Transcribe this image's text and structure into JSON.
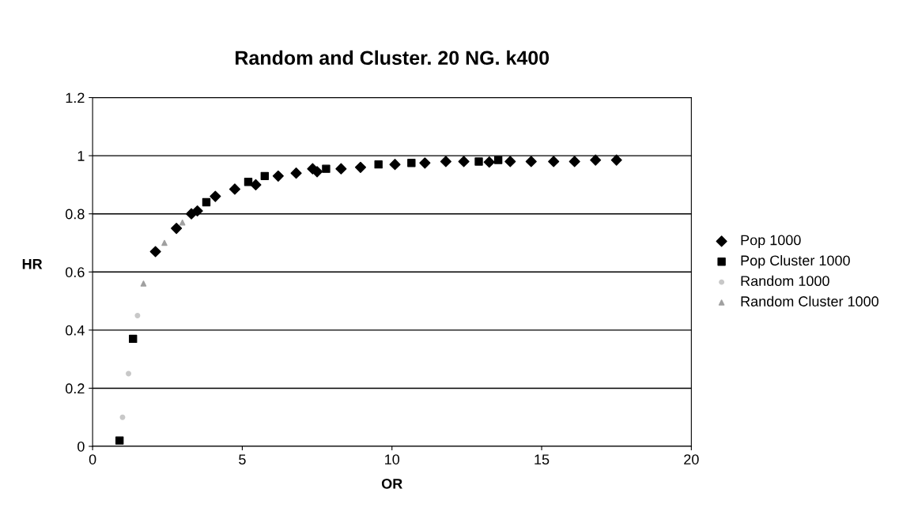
{
  "chart_data": {
    "type": "scatter",
    "title": "Random and Cluster. 20 NG. k400",
    "xlabel": "OR",
    "ylabel": "HR",
    "xlim": [
      0,
      20
    ],
    "xticks": [
      0,
      5,
      10,
      15,
      20
    ],
    "ylim": [
      0,
      1.2
    ],
    "yticks": [
      0,
      0.2,
      0.4,
      0.6,
      0.8,
      1,
      1.2
    ],
    "grid": "y",
    "legend": "right",
    "series": [
      {
        "name": "Pop 1000",
        "color": "#000000",
        "marker": "diamond",
        "x": [
          2.1,
          2.8,
          3.3,
          3.5,
          4.1,
          4.75,
          5.45,
          6.2,
          6.8,
          7.35,
          7.5,
          8.3,
          8.95,
          10.1,
          11.1,
          11.8,
          12.4,
          13.25,
          13.95,
          14.65,
          15.4,
          16.1,
          16.8,
          17.5
        ],
        "values": [
          0.67,
          0.75,
          0.8,
          0.81,
          0.86,
          0.885,
          0.9,
          0.93,
          0.94,
          0.955,
          0.945,
          0.955,
          0.96,
          0.97,
          0.975,
          0.98,
          0.98,
          0.978,
          0.98,
          0.98,
          0.98,
          0.98,
          0.985,
          0.985
        ]
      },
      {
        "name": "Pop Cluster 1000",
        "color": "#000000",
        "marker": "square",
        "x": [
          0.9,
          1.35,
          3.8,
          5.2,
          5.75,
          7.8,
          9.55,
          10.65,
          12.9,
          13.55
        ],
        "values": [
          0.02,
          0.37,
          0.84,
          0.91,
          0.93,
          0.955,
          0.97,
          0.975,
          0.98,
          0.985
        ]
      },
      {
        "name": "Random 1000",
        "color": "#c8c8c8",
        "marker": "circle",
        "x": [
          1.0,
          1.2,
          1.5
        ],
        "values": [
          0.1,
          0.25,
          0.45
        ]
      },
      {
        "name": "Random Cluster 1000",
        "color": "#a0a0a0",
        "marker": "triangle",
        "x": [
          1.7,
          2.4,
          3.0
        ],
        "values": [
          0.56,
          0.7,
          0.77
        ]
      }
    ]
  }
}
